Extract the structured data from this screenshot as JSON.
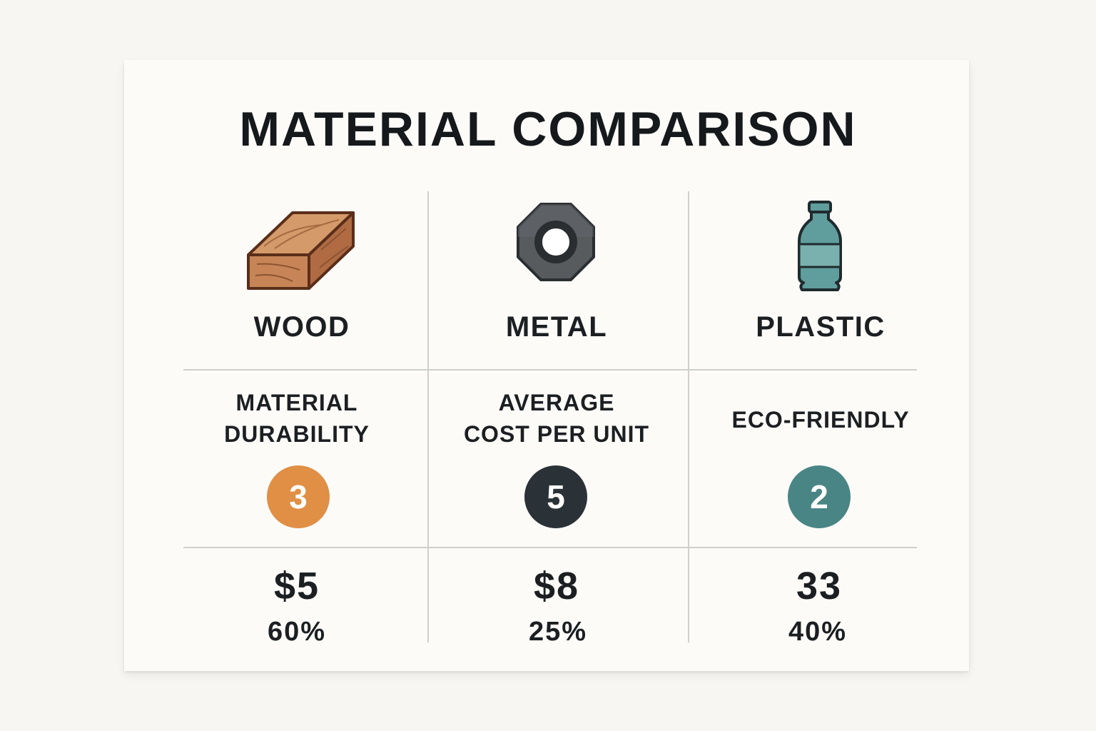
{
  "title": "MATERIAL COMPARISON",
  "colors": {
    "wood_badge": "#e08f45",
    "metal_badge": "#2b3237",
    "plastic_badge": "#4a8585",
    "wood_icon": "#b8724a",
    "metal_icon": "#55595c",
    "plastic_icon": "#5f9e9c"
  },
  "columns": [
    {
      "material": "WOOD",
      "icon": "wood-beam-icon",
      "metric_label_lines": [
        "MATERIAL",
        "DURABILITY"
      ],
      "rating": "3",
      "price": "$5",
      "percent": "60%"
    },
    {
      "material": "METAL",
      "icon": "hex-nut-icon",
      "metric_label_lines": [
        "AVERAGE",
        "COST PER UNIT"
      ],
      "rating": "5",
      "price": "$8",
      "percent": "25%"
    },
    {
      "material": "PLASTIC",
      "icon": "plastic-bottle-icon",
      "metric_label_lines": [
        "ECO-FRIENDLY"
      ],
      "rating": "2",
      "price": "33",
      "percent": "40%"
    }
  ]
}
